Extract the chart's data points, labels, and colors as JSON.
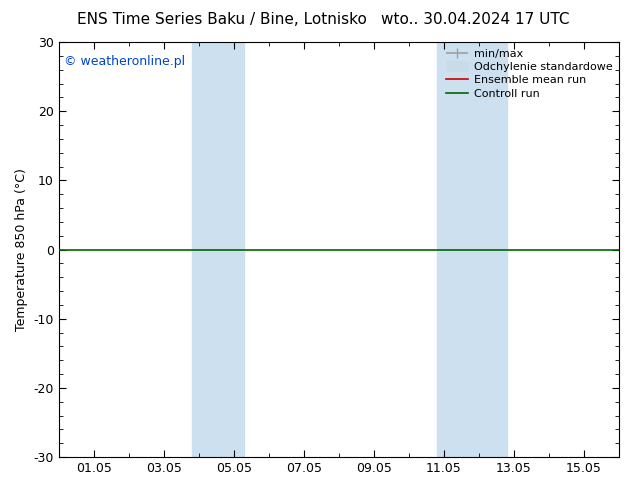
{
  "title_left": "ENS Time Series Baku / Bine, Lotnisko",
  "title_right": "wto.. 30.04.2024 17 UTC",
  "ylabel": "Temperature 850 hPa (°C)",
  "watermark": "© weatheronline.pl",
  "ylim": [
    -30,
    30
  ],
  "yticks": [
    -30,
    -20,
    -10,
    0,
    10,
    20,
    30
  ],
  "xtick_labels": [
    "01.05",
    "03.05",
    "05.05",
    "07.05",
    "09.05",
    "11.05",
    "13.05",
    "15.05"
  ],
  "xtick_positions": [
    1,
    3,
    5,
    7,
    9,
    11,
    13,
    15
  ],
  "xlim": [
    0,
    16
  ],
  "shade_bands": [
    {
      "xstart": 3.8,
      "xend": 5.3
    },
    {
      "xstart": 10.8,
      "xend": 12.8
    }
  ],
  "shade_color": "#cce0f0",
  "zero_line_color": "#006600",
  "bg_color": "#ffffff",
  "legend_items": [
    {
      "label": "min/max",
      "color": "#a0a0a0",
      "lw": 1.2
    },
    {
      "label": "Odchylenie standardowe",
      "color": "#c8dce8",
      "lw": 8
    },
    {
      "label": "Ensemble mean run",
      "color": "#cc0000",
      "lw": 1.2
    },
    {
      "label": "Controll run",
      "color": "#006600",
      "lw": 1.2
    }
  ],
  "title_fontsize": 11,
  "tick_label_fontsize": 9,
  "ylabel_fontsize": 9,
  "watermark_fontsize": 9,
  "watermark_color": "#0044cc"
}
